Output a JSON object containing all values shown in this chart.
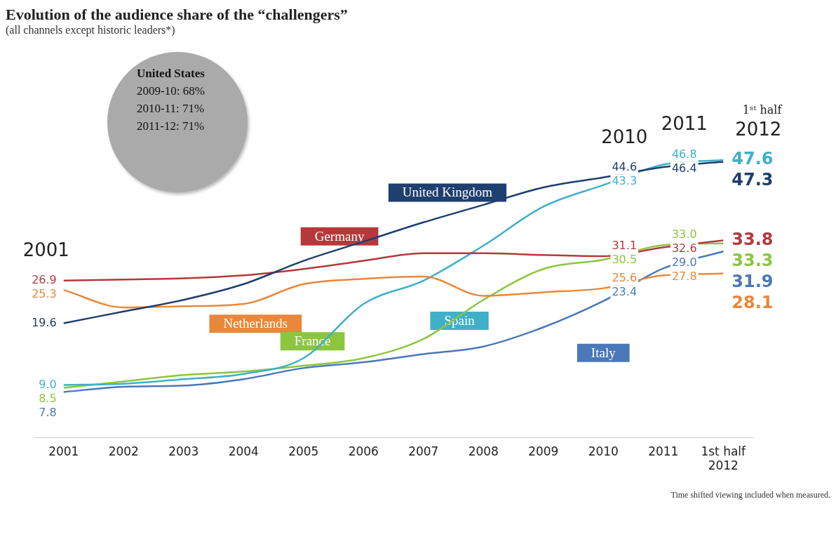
{
  "chart_data": {
    "type": "line",
    "title": "Evolution of the audience share of the “challengers”",
    "subtitle": "(all channels except historic leaders*)",
    "categories": [
      "2001",
      "2002",
      "2003",
      "2004",
      "2005",
      "2006",
      "2007",
      "2008",
      "2009",
      "2010",
      "2011",
      "1st half 2012"
    ],
    "tick_labels": "x",
    "grid": false,
    "legend": false,
    "marker": "none",
    "line_style": "solid",
    "series": [
      {
        "name": "United Kingdom",
        "color": "#1f3f6e",
        "values": [
          19.6,
          21.6,
          23.6,
          26.3,
          30.3,
          33.6,
          36.9,
          39.9,
          42.9,
          44.6,
          46.4,
          47.3
        ],
        "value_labels": [
          "19.6",
          null,
          null,
          null,
          null,
          null,
          null,
          null,
          null,
          "44.6",
          "46.4",
          "47.3"
        ]
      },
      {
        "name": "Germany",
        "color": "#b5393b",
        "values": [
          26.9,
          27.1,
          27.3,
          27.8,
          28.9,
          30.3,
          31.6,
          31.6,
          31.3,
          31.1,
          32.6,
          33.8
        ],
        "value_labels": [
          "26.9",
          null,
          null,
          null,
          null,
          null,
          null,
          null,
          null,
          "31.1",
          "32.6",
          "33.8"
        ]
      },
      {
        "name": "Netherlands",
        "color": "#e8883a",
        "values": [
          25.3,
          22.3,
          22.5,
          22.9,
          26.3,
          27.2,
          27.6,
          24.3,
          24.9,
          25.6,
          27.8,
          28.1
        ],
        "value_labels": [
          "25.3",
          null,
          null,
          null,
          null,
          null,
          null,
          null,
          null,
          "25.6",
          "27.8",
          "28.1"
        ]
      },
      {
        "name": "Spain",
        "color": "#3fb0c8",
        "values": [
          9.0,
          9.2,
          10.0,
          10.9,
          13.6,
          22.9,
          26.9,
          32.9,
          39.6,
          43.3,
          46.8,
          47.6
        ],
        "value_labels": [
          "9.0",
          null,
          null,
          null,
          null,
          null,
          null,
          null,
          null,
          "43.3",
          "46.8",
          "47.6"
        ]
      },
      {
        "name": "France",
        "color": "#8cc63f",
        "values": [
          8.5,
          9.6,
          10.7,
          11.3,
          12.3,
          13.6,
          16.9,
          23.6,
          28.9,
          30.5,
          33.0,
          33.3
        ],
        "value_labels": [
          "8.5",
          null,
          null,
          null,
          null,
          null,
          null,
          null,
          null,
          "30.5",
          "33.0",
          "33.3"
        ]
      },
      {
        "name": "Italy",
        "color": "#4a78b8",
        "values": [
          7.8,
          8.7,
          8.9,
          10.0,
          11.9,
          12.9,
          14.3,
          15.6,
          18.9,
          23.4,
          29.0,
          31.9
        ],
        "value_labels": [
          "7.8",
          null,
          null,
          null,
          null,
          null,
          null,
          null,
          null,
          "23.4",
          "29.0",
          "31.9"
        ]
      }
    ],
    "annotations": [
      "2001",
      "2010",
      "2011",
      "1ˢᵗ half 2012",
      "United States",
      "2009-10: 68%",
      "2010-11: 71%",
      "2011-12: 71%",
      "Time shifted viewing included when measured."
    ]
  }
}
